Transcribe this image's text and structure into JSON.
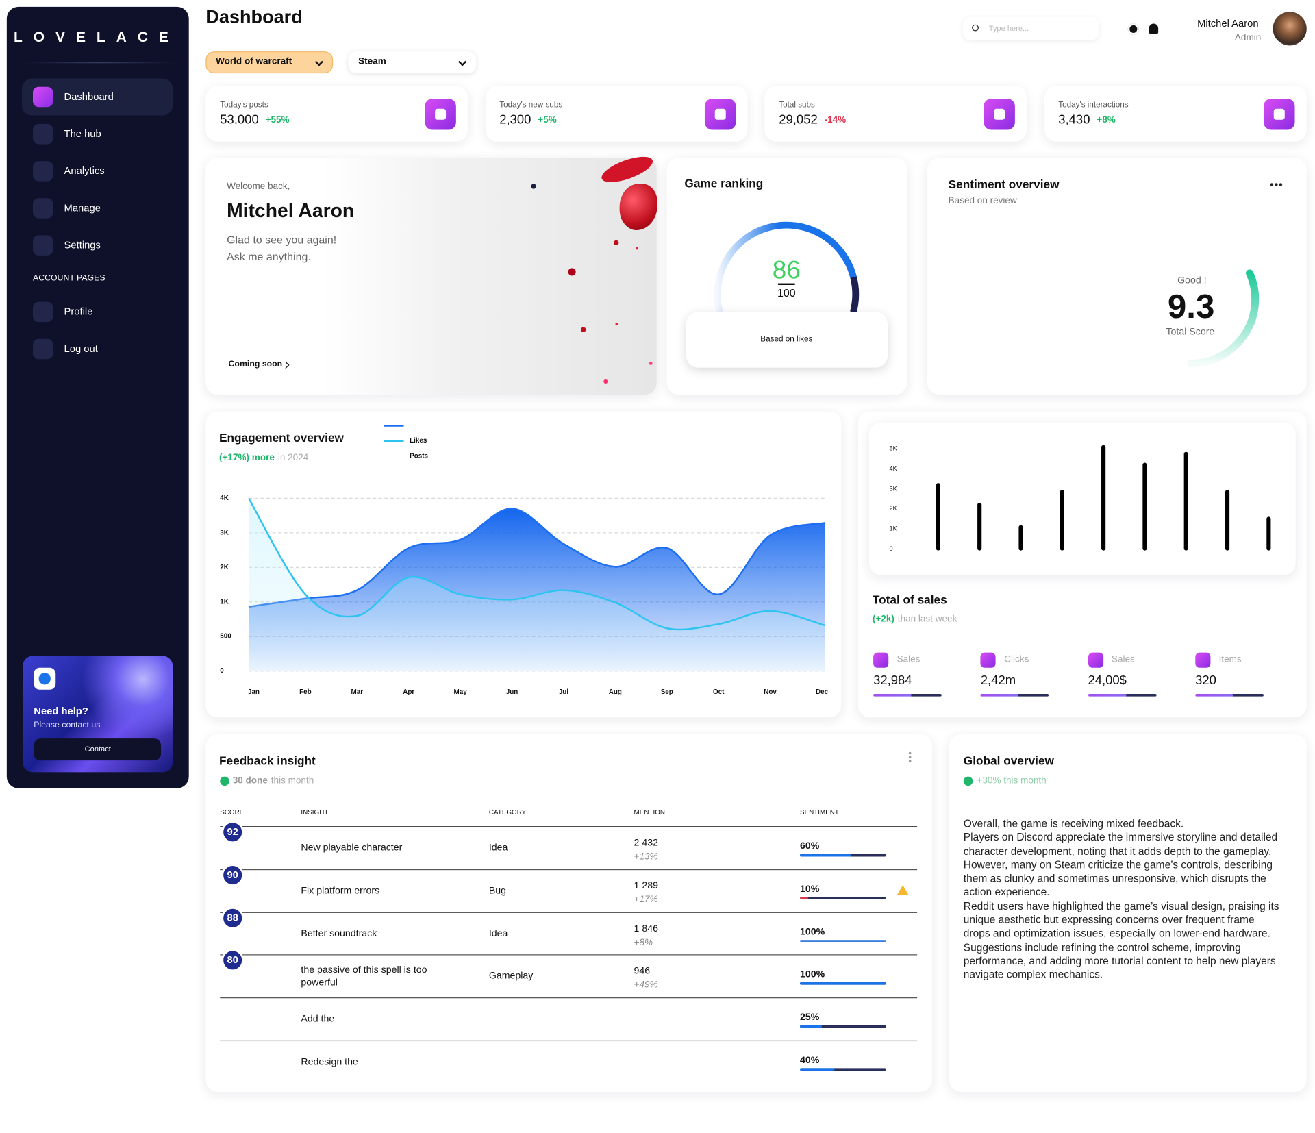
{
  "brand": "LOVELACE",
  "nav": [
    "Dashboard",
    "The hub",
    "Analytics",
    "Manage",
    "Settings"
  ],
  "account_heading": "ACCOUNT PAGES",
  "account_nav": [
    "Profile",
    "Log out"
  ],
  "help": {
    "title": "Need help?",
    "subtitle": "Please contact us",
    "button": "Contact"
  },
  "header": {
    "title": "Dashboard",
    "search_placeholder": "Type here...",
    "user_name": "Mitchel Aaron",
    "user_role": "Admin"
  },
  "filters": [
    "World of warcraft",
    "Steam"
  ],
  "stats": [
    {
      "label": "Today's posts",
      "value": "53,000",
      "change": "+55%",
      "color": "#1fb56a"
    },
    {
      "label": "Today's new subs",
      "value": "2,300",
      "change": "+5%",
      "color": "#1fb56a"
    },
    {
      "label": "Total subs",
      "value": "29,052",
      "change": "-14%",
      "color": "#e0334d"
    },
    {
      "label": "Today's interactions",
      "value": "3,430",
      "change": "+8%",
      "color": "#1fb56a"
    }
  ],
  "welcome": {
    "greeting": "Welcome back,",
    "name": "Mitchel Aaron",
    "line1": "Glad to see you again!",
    "line2": "Ask me anything.",
    "link": "Coming soon"
  },
  "game_ranking": {
    "title": "Game ranking",
    "score": 86,
    "max": 100,
    "note": "Based on likes"
  },
  "sentiment": {
    "title": "Sentiment overview",
    "subtitle": "Based on review",
    "label": "Good !",
    "score": "9.3",
    "caption": "Total Score"
  },
  "chart_data": [
    {
      "type": "area",
      "title": "Engagement overview",
      "subtitle_highlight": "(+17%) more",
      "subtitle": "in 2024",
      "categories": [
        "Jan",
        "Feb",
        "Mar",
        "Apr",
        "May",
        "Jun",
        "Jul",
        "Aug",
        "Sep",
        "Oct",
        "Nov",
        "Dec"
      ],
      "series": [
        {
          "name": "Likes",
          "color": "#1c6ef2",
          "values": [
            930,
            1100,
            1340,
            2560,
            2800,
            3700,
            2680,
            2020,
            2560,
            1220,
            2930,
            3290
          ]
        },
        {
          "name": "Posts",
          "color": "#2ec4f0",
          "values": [
            4000,
            1220,
            800,
            1710,
            1220,
            1070,
            1340,
            990,
            620,
            680,
            870,
            660
          ]
        }
      ],
      "ylim": [
        0,
        4000
      ],
      "yticks": [
        0,
        500,
        {
          "value": 1000,
          "label": "1K"
        },
        {
          "value": 2000,
          "label": "2K"
        },
        {
          "value": 3000,
          "label": "3K"
        },
        {
          "value": 4000,
          "label": "4K"
        }
      ],
      "grid": true
    },
    {
      "type": "bar",
      "title": "Total of sales",
      "subtitle_highlight": "(+2k)",
      "subtitle": "than last week",
      "categories": [
        null,
        null,
        null,
        null,
        null,
        null,
        null,
        null,
        null
      ],
      "values": [
        3280,
        2300,
        1180,
        2940,
        5170,
        4290,
        4830,
        2940,
        1600
      ],
      "color": "#000000",
      "ylim": [
        0,
        5200
      ],
      "yticks": [
        0,
        {
          "value": 1000,
          "label": "1K"
        },
        {
          "value": 2000,
          "label": "2K"
        },
        {
          "value": 3000,
          "label": "3K"
        },
        {
          "value": 4000,
          "label": "4K"
        },
        {
          "value": 5000,
          "label": "5K"
        }
      ],
      "grid": false
    }
  ],
  "sales_stats": [
    {
      "label": "Sales",
      "value": "32,984"
    },
    {
      "label": "Clicks",
      "value": "2,42m"
    },
    {
      "label": "Sales",
      "value": "24,00$"
    },
    {
      "label": "Items",
      "value": "320"
    }
  ],
  "feedback": {
    "title": "Feedback insight",
    "done": "30 done",
    "period": "this month",
    "columns": [
      "SCORE",
      "INSIGHT",
      "CATEGORY",
      "MENTION",
      "SENTIMENT"
    ],
    "rows": [
      {
        "score": 92,
        "insight": "New playable character",
        "category": "Idea",
        "mention": "2 432",
        "mention_change": "+13%",
        "sentiment": "60%",
        "color": "#1a73e8"
      },
      {
        "score": 90,
        "insight": "Fix platform errors",
        "category": "Bug",
        "mention": "1 289",
        "mention_change": "+17%",
        "sentiment": "10%",
        "color": "#e0334d"
      },
      {
        "score": 88,
        "insight": "Better soundtrack",
        "category": "Idea",
        "mention": "1 846",
        "mention_change": "+8%",
        "sentiment": "100%",
        "color": "#1a73e8"
      },
      {
        "score": 80,
        "insight": "the passive of this spell is too powerful",
        "category": "Gameplay",
        "mention": "946",
        "mention_change": "+49%",
        "sentiment": "100%",
        "color": "#1a73e8"
      },
      {
        "insight": "Add the",
        "sentiment": "25%",
        "color": "#1a73e8"
      },
      {
        "insight": "Redesign the",
        "sentiment": "40%",
        "color": "#1a73e8"
      }
    ]
  },
  "global": {
    "title": "Global overview",
    "subtitle": "+30% this month",
    "paragraphs": [
      "Overall, the game is receiving mixed feedback.",
      "Players on Discord appreciate the immersive storyline and detailed character development, noting that it adds depth to the gameplay.",
      "However, many on Steam criticize the game’s controls, describing them as clunky and sometimes unresponsive, which disrupts the action experience.",
      "Reddit users have highlighted the game’s visual design, praising its unique aesthetic but expressing concerns over frequent frame drops and optimization issues, especially on lower-end hardware.",
      "Suggestions include refining the control scheme, improving performance, and adding more tutorial content to help new players navigate complex mechanics."
    ]
  }
}
